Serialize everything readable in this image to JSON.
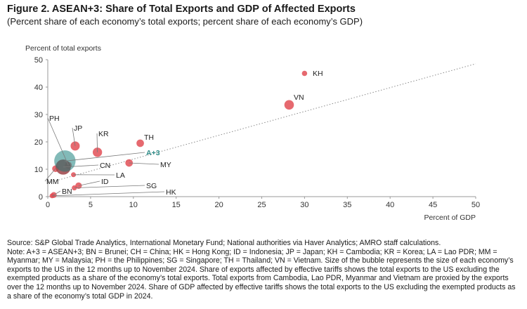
{
  "header": {
    "title": "Figure 2. ASEAN+3: Share of Total Exports and GDP of Affected Exports",
    "subtitle": "(Percent share of each economy’s total exports; percent share of each economy’s GDP)"
  },
  "chart_data": {
    "type": "scatter",
    "ylabel": "Percent of total exports",
    "xlabel": "Percent of GDP",
    "xlim": [
      0,
      50
    ],
    "ylim": [
      0,
      50
    ],
    "x_ticks": [
      "0",
      "5",
      "10",
      "15",
      "20",
      "25",
      "30",
      "35",
      "40",
      "45",
      "50"
    ],
    "y_ticks": [
      "0",
      "10",
      "20",
      "30",
      "40",
      "50"
    ],
    "grid": false,
    "trend_line": true,
    "colors": {
      "economy": "#e0484f",
      "aggregate": "#2f8c88",
      "trend": "#8c8c8c",
      "leader": "#7a7a7a"
    },
    "points": [
      {
        "label": "KH",
        "x": 30.0,
        "y": 45.0,
        "size": 1.2
      },
      {
        "label": "VN",
        "x": 28.2,
        "y": 33.5,
        "size": 4.4
      },
      {
        "label": "TH",
        "x": 10.8,
        "y": 19.5,
        "size": 2.6
      },
      {
        "label": "JP",
        "x": 3.2,
        "y": 18.5,
        "size": 4.0
      },
      {
        "label": "KR",
        "x": 5.8,
        "y": 16.2,
        "size": 4.2
      },
      {
        "label": "MY",
        "x": 9.5,
        "y": 12.3,
        "size": 2.6
      },
      {
        "label": "PH",
        "x": 2.4,
        "y": 11.5,
        "size": 2.2
      },
      {
        "label": "A+3",
        "x": 2.0,
        "y": 13.0,
        "size": 24.0,
        "aggregate": true
      },
      {
        "label": "CN",
        "x": 1.8,
        "y": 10.8,
        "size": 11.8
      },
      {
        "label": "ID",
        "x": 3.6,
        "y": 4.0,
        "size": 1.9
      },
      {
        "label": "MM",
        "x": 0.9,
        "y": 10.2,
        "size": 2.0
      },
      {
        "label": "BN",
        "x": 0.7,
        "y": 0.6,
        "size": 1.5
      },
      {
        "label": "LA",
        "x": 3.0,
        "y": 8.0,
        "size": 1.0
      },
      {
        "label": "SG",
        "x": 3.1,
        "y": 3.2,
        "size": 1.1
      },
      {
        "label": "HK",
        "x": 0.5,
        "y": 0.3,
        "size": 1.0
      }
    ]
  },
  "notes": {
    "source": "Source: S&P Global Trade Analytics, International Monetary Fund; National authorities via Haver Analytics; AMRO staff calculations.",
    "note": "Note: A+3 = ASEAN+3; BN = Brunei; CH = China; HK = Hong Kong; ID = Indonesia; JP = Japan; KH = Cambodia; KR = Korea; LA = Lao PDR; MM = Myanmar; MY = Malaysia; PH = the Philippines; SG = Singapore; TH = Thailand; VN = Vietnam. Size of the bubble represents the size of each economy’s exports to the US in the 12 months up to November 2024. Share of exports affected by effective tariffs shows the total exports to the US excluding the exempted products as a share of the economy’s total exports. Total exports from Cambodia, Lao PDR, Myanmar and Vietnam are proxied by the exports over the 12 months up to November 2024. Share of GDP affected by effective tariffs shows the total exports to the US excluding the exempted products as a share of the economy’s total GDP in 2024."
  }
}
